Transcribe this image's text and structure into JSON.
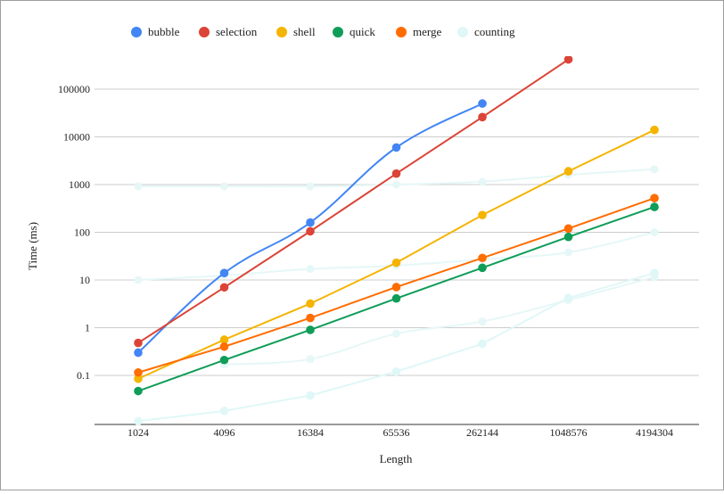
{
  "chart_data": {
    "type": "line",
    "title": "",
    "xlabel": "Length",
    "ylabel": "Time (ms)",
    "y_scale": "log",
    "ylim": [
      0.01,
      100000
    ],
    "grid": true,
    "legend_position": "top-left",
    "categories": [
      "1024",
      "4096",
      "16384",
      "65536",
      "262144",
      "1048576",
      "4194304"
    ],
    "y_ticks": [
      "0.1",
      "1",
      "10",
      "100",
      "1000",
      "10000",
      "100000"
    ],
    "y_tick_values": [
      0.1,
      1,
      10,
      100,
      1000,
      10000,
      100000
    ],
    "series": [
      {
        "name": "bubble",
        "color": "#4285f4",
        "values": [
          0.3,
          14,
          160,
          6000,
          50000,
          null,
          null
        ]
      },
      {
        "name": "selection",
        "color": "#db4437",
        "values": [
          0.48,
          7,
          105,
          1700,
          26000,
          420000,
          null
        ]
      },
      {
        "name": "shell",
        "color": "#f4b400",
        "values": [
          0.085,
          0.56,
          3.2,
          23,
          230,
          1900,
          14000
        ]
      },
      {
        "name": "quick",
        "color": "#0f9d58",
        "values": [
          0.047,
          0.21,
          0.9,
          4.1,
          18,
          80,
          340
        ]
      },
      {
        "name": "merge",
        "color": "#ff6d00",
        "values": [
          0.115,
          0.4,
          1.6,
          7.1,
          29,
          120,
          520
        ]
      },
      {
        "name": "counting",
        "color": "#e0f7f7",
        "values": [
          0.011,
          0.018,
          0.038,
          0.12,
          0.46,
          4.2,
          14
        ]
      }
    ],
    "faint_series": [
      {
        "color": "#e6f7f7",
        "values": [
          920,
          920,
          920,
          1000,
          1150,
          1600,
          2100
        ]
      },
      {
        "color": "#e6f7f7",
        "values": [
          10,
          12.5,
          17,
          20,
          27,
          38,
          100
        ]
      },
      {
        "color": "#e6f7f7",
        "values": [
          null,
          0.17,
          0.22,
          0.75,
          1.35,
          3.8,
          11.5
        ]
      }
    ]
  }
}
